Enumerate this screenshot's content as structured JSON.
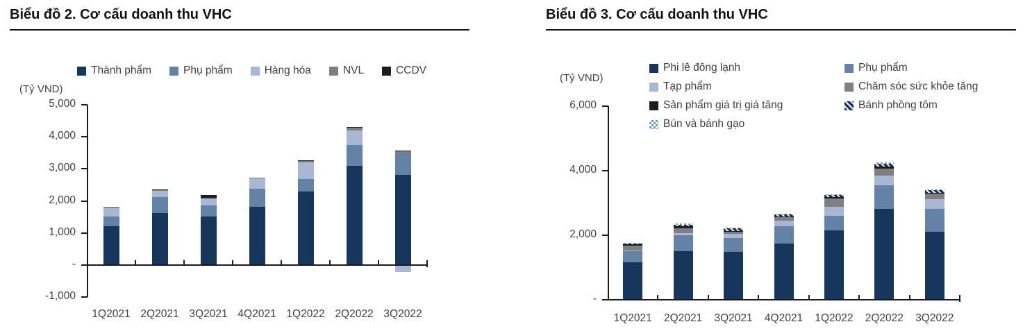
{
  "page": {
    "background": "#ffffff"
  },
  "chart_data": [
    {
      "type": "bar",
      "stacked": true,
      "title": "Biểu đồ 2. Cơ cấu doanh thu VHC",
      "unit_label": "(Tỷ VND)",
      "categories": [
        "1Q2021",
        "2Q2021",
        "3Q2021",
        "4Q2021",
        "1Q2022",
        "2Q2022",
        "3Q2022"
      ],
      "series": [
        {
          "name": "Thành phẩm",
          "color": "#16365C",
          "pattern": "solid",
          "values": [
            1210,
            1630,
            1510,
            1820,
            2290,
            3090,
            2820
          ]
        },
        {
          "name": "Phụ phẩm",
          "color": "#6482A5",
          "pattern": "solid",
          "values": [
            300,
            480,
            350,
            560,
            400,
            645,
            670
          ]
        },
        {
          "name": "Hàng hóa",
          "color": "#A8B8D4",
          "pattern": "solid",
          "values": [
            260,
            200,
            195,
            315,
            505,
            470,
            -230
          ]
        },
        {
          "name": "NVL",
          "color": "#7F7F7F",
          "pattern": "solid",
          "values": [
            20,
            30,
            40,
            30,
            60,
            80,
            70
          ]
        },
        {
          "name": "CCDV",
          "color": "#1E1C1D",
          "pattern": "solid",
          "values": [
            10,
            10,
            90,
            0,
            10,
            20,
            20
          ]
        }
      ],
      "ylim": [
        -1000,
        5000
      ],
      "yticks": [
        {
          "value": 5000,
          "label": "5,000"
        },
        {
          "value": 4000,
          "label": "4,000"
        },
        {
          "value": 3000,
          "label": "3,000"
        },
        {
          "value": 2000,
          "label": "2,000"
        },
        {
          "value": 1000,
          "label": "1,000"
        },
        {
          "value": 0,
          "label": "-"
        },
        {
          "value": -1000,
          "label": "-1,000"
        }
      ],
      "legend_position": "top",
      "grid": false
    },
    {
      "type": "bar",
      "stacked": true,
      "title": "Biểu đồ 3. Cơ cấu doanh thu VHC",
      "unit_label": "(Tỷ VND)",
      "categories": [
        "1Q2021",
        "2Q2021",
        "3Q2021",
        "4Q2021",
        "1Q2022",
        "2Q2022",
        "3Q2022"
      ],
      "series": [
        {
          "name": "Phi lê đông lạnh",
          "color": "#16365C",
          "pattern": "solid",
          "values": [
            1170,
            1500,
            1490,
            1735,
            2150,
            2810,
            2100
          ]
        },
        {
          "name": "Phụ phẩm",
          "color": "#6482A5",
          "pattern": "solid",
          "values": [
            330,
            510,
            415,
            540,
            445,
            740,
            710
          ]
        },
        {
          "name": "Tạp phẩm",
          "color": "#A8B8D4",
          "pattern": "solid",
          "values": [
            30,
            55,
            145,
            180,
            285,
            300,
            310
          ]
        },
        {
          "name": "Chăm sóc sức khỏe tăng",
          "color": "#7F7F7F",
          "pattern": "solid",
          "values": [
            150,
            155,
            60,
            115,
            260,
            220,
            180
          ]
        },
        {
          "name": "Sản phẩm giá trị giá tăng",
          "color": "#1E1C1D",
          "pattern": "solid",
          "values": [
            30,
            55,
            20,
            20,
            50,
            50,
            20
          ]
        },
        {
          "name": "Bánh phồng tôm",
          "color": "#16365C",
          "pattern": "diagonal",
          "values": [
            40,
            55,
            90,
            50,
            60,
            100,
            80
          ]
        },
        {
          "name": "Bún và bánh gạo",
          "color": "#7F9CBF",
          "pattern": "checker",
          "values": [
            20,
            25,
            20,
            20,
            25,
            30,
            25
          ]
        }
      ],
      "ylim": [
        0,
        6000
      ],
      "yticks": [
        {
          "value": 6000,
          "label": "6,000"
        },
        {
          "value": 4000,
          "label": "4,000"
        },
        {
          "value": 2000,
          "label": "2,000"
        },
        {
          "value": 0,
          "label": "-"
        }
      ],
      "legend_position": "top",
      "grid": false
    }
  ]
}
